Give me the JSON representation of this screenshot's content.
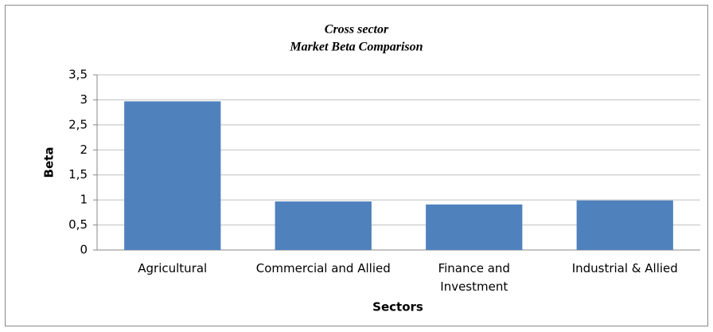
{
  "chart_data": {
    "type": "bar",
    "title": [
      "Cross sector",
      "Market Beta Comparison"
    ],
    "x_label": "Sectors",
    "y_label": "Beta",
    "categories": [
      "Agricultural",
      "Commercial and Allied",
      "Finance and Investment",
      "Industrial & Allied"
    ],
    "values": [
      2.97,
      0.97,
      0.91,
      0.99
    ],
    "color": "#4f81bd",
    "ylim": [
      0,
      3.5
    ],
    "yticks": [
      0,
      {
        "value": 0.5,
        "label": "0,5"
      },
      1,
      {
        "value": 1.5,
        "label": "1,5"
      },
      2,
      {
        "value": 2.5,
        "label": "2,5"
      },
      3,
      {
        "value": 3.5,
        "label": "3,5"
      }
    ],
    "grid": true
  }
}
